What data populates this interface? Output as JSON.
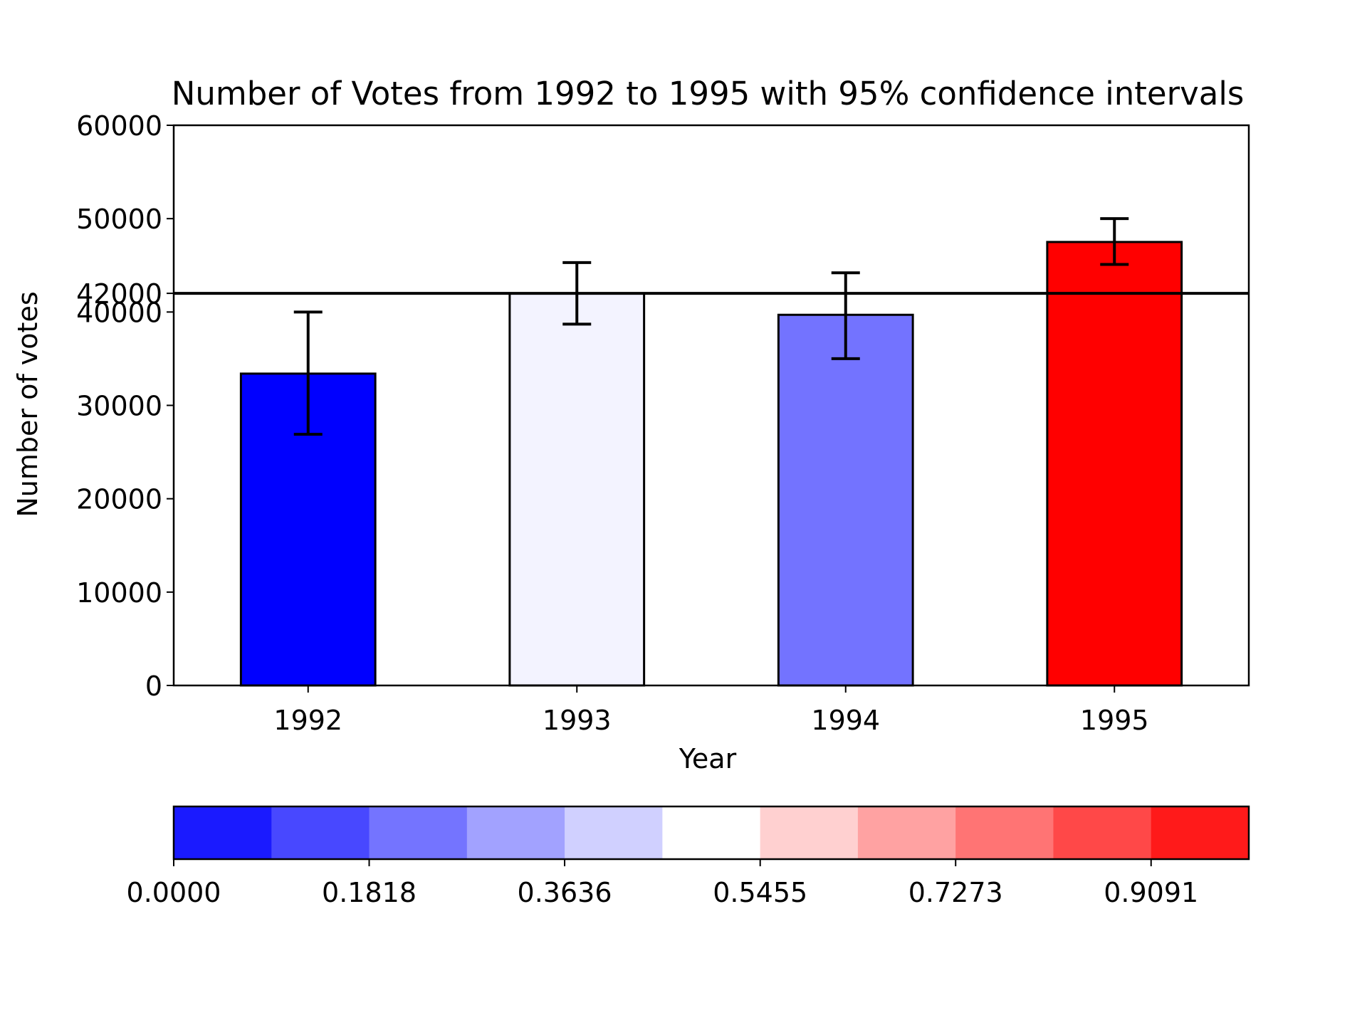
{
  "chart_data": {
    "type": "bar",
    "title": "Number of Votes from 1992 to 1995 with 95% confidence intervals",
    "xlabel": "Year",
    "ylabel": "Number of votes",
    "categories": [
      "1992",
      "1993",
      "1994",
      "1995"
    ],
    "values": [
      33400,
      42000,
      39700,
      47500
    ],
    "ci_low": [
      26900,
      38700,
      35000,
      45100
    ],
    "ci_high": [
      40000,
      45300,
      44200,
      50000
    ],
    "bar_colors": [
      "#0000ff",
      "#f3f3ff",
      "#7373ff",
      "#ff0000"
    ],
    "ylim": [
      0,
      60000
    ],
    "yticks": [
      0,
      10000,
      20000,
      30000,
      40000,
      50000,
      60000
    ],
    "ytick_labels": [
      "0",
      "10000",
      "20000",
      "30000",
      "40000",
      "50000",
      "60000"
    ],
    "reference_line": {
      "value": 42000,
      "label": "42000"
    },
    "colorbar": {
      "colors": [
        "#1a1aff",
        "#4848ff",
        "#7474ff",
        "#a2a2ff",
        "#d0d0ff",
        "#ffffff",
        "#ffd0d0",
        "#ffa2a2",
        "#ff7474",
        "#ff4848",
        "#ff1a1a"
      ],
      "ticks": [
        0,
        0.1818,
        0.3636,
        0.5455,
        0.7273,
        0.9091
      ],
      "tick_labels": [
        "0.0000",
        "0.1818",
        "0.3636",
        "0.5455",
        "0.7273",
        "0.9091"
      ],
      "range": [
        0,
        1
      ]
    }
  }
}
